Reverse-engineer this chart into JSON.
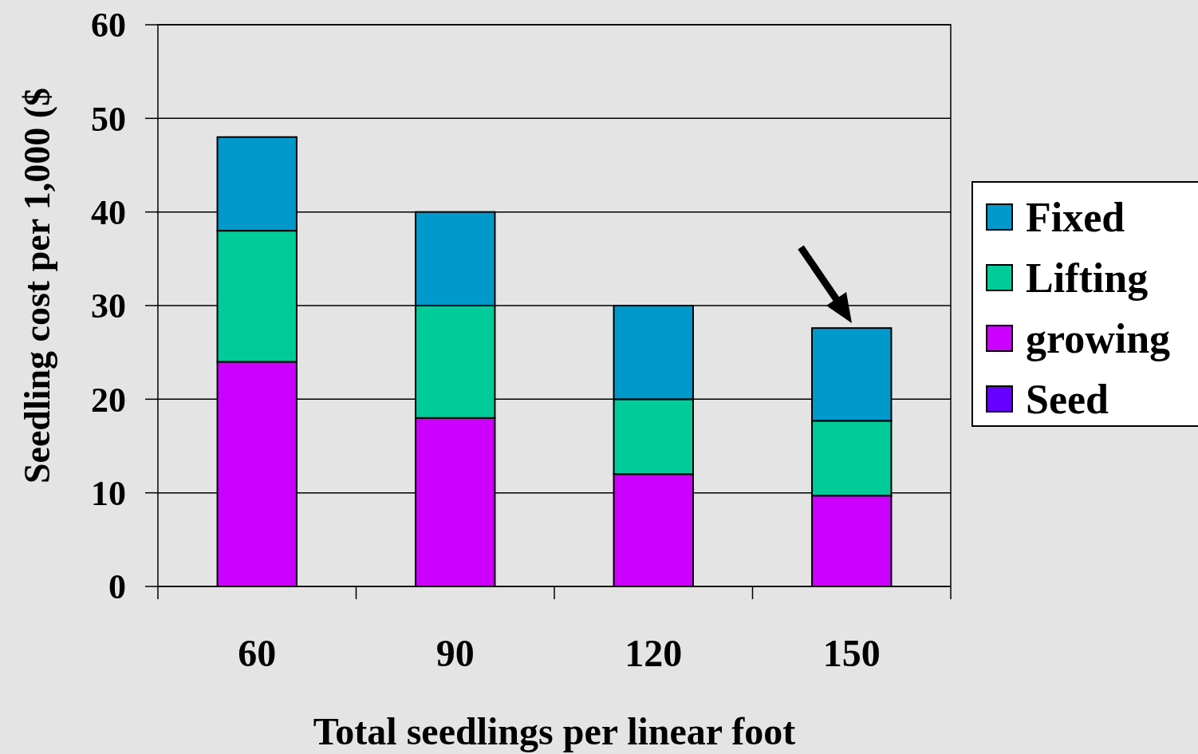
{
  "chart_data": {
    "type": "bar",
    "stacked": true,
    "xlabel": "Total seedlings per linear foot",
    "ylabel": "Seedling cost per 1,000 ($",
    "categories": [
      "60",
      "90",
      "120",
      "150"
    ],
    "series": [
      {
        "name": "Seed",
        "color": "#6600ff",
        "values": [
          0,
          0,
          0,
          0
        ]
      },
      {
        "name": "growing",
        "color": "#cc00ff",
        "values": [
          24,
          18,
          12,
          9.7
        ]
      },
      {
        "name": "Lifting",
        "color": "#00cc99",
        "values": [
          14,
          12,
          8,
          8
        ]
      },
      {
        "name": "Fixed",
        "color": "#0099cc",
        "values": [
          10,
          10,
          10,
          9.9
        ]
      }
    ],
    "ylim": [
      0,
      60
    ],
    "yticks": [
      0,
      10,
      20,
      30,
      40,
      50,
      60
    ],
    "grid": "y",
    "legend": "right"
  }
}
